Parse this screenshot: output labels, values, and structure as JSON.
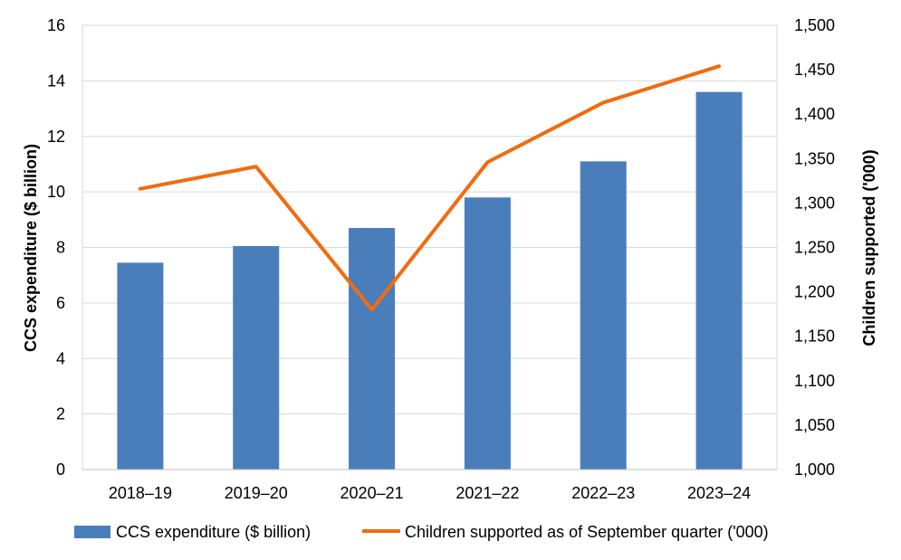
{
  "chart_data": {
    "type": "bar",
    "categories": [
      "2018–19",
      "2019–20",
      "2020–21",
      "2021–22",
      "2022–23",
      "2023–24"
    ],
    "series": [
      {
        "name": "CCS expenditure ($ billion)",
        "type": "bar",
        "axis": "left",
        "color": "#4a7ebb",
        "values": [
          7.45,
          8.05,
          8.7,
          9.8,
          11.1,
          13.6
        ]
      },
      {
        "name": "Children supported as of September quarter ('000)",
        "type": "line",
        "axis": "right",
        "color": "#f26b0f",
        "values": [
          1316,
          1341,
          1180,
          1346,
          1413,
          1454
        ]
      }
    ],
    "ylabel": "CCS expenditure ($ billion)",
    "y2label": "Children supported ('000)",
    "ylim": [
      0,
      16
    ],
    "y2lim": [
      1000,
      1500
    ],
    "yticks": [
      "0",
      "2",
      "4",
      "6",
      "8",
      "10",
      "12",
      "14",
      "16"
    ],
    "y2ticks": [
      "1,000",
      "1,050",
      "1,100",
      "1,150",
      "1,200",
      "1,250",
      "1,300",
      "1,350",
      "1,400",
      "1,450",
      "1,500"
    ],
    "grid": true,
    "legend_position": "bottom"
  }
}
